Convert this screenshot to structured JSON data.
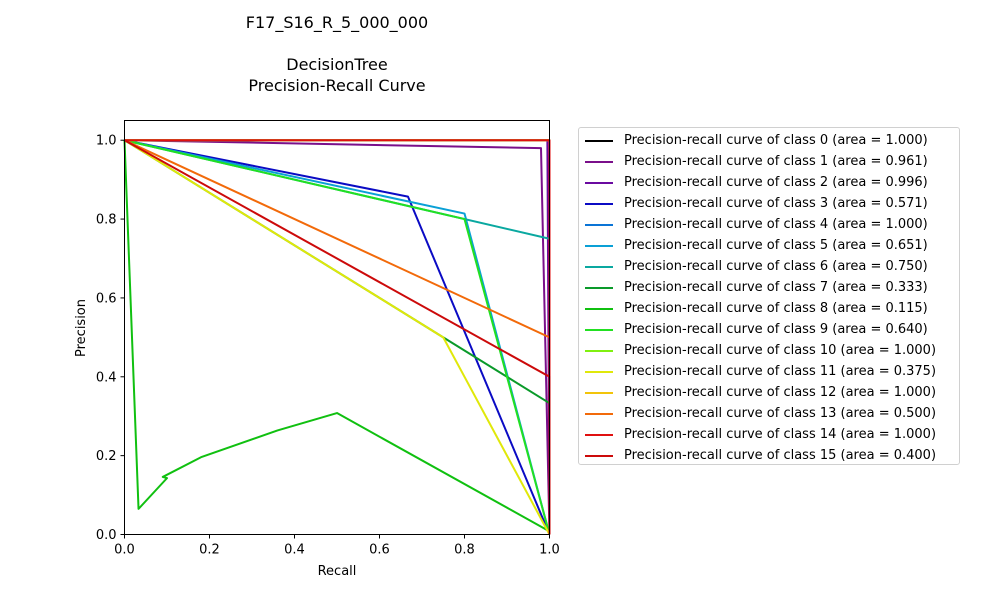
{
  "chart_data": {
    "type": "line",
    "title_lines": [
      "F17_S16_R_5_000_000",
      "",
      "DecisionTree",
      "Precision-Recall Curve"
    ],
    "xlabel": "Recall",
    "ylabel": "Precision",
    "xlim": [
      0.0,
      1.0
    ],
    "ylim": [
      0.0,
      1.05
    ],
    "xticks": [
      "0.0",
      "0.2",
      "0.4",
      "0.6",
      "0.8",
      "1.0"
    ],
    "yticks": [
      "0.0",
      "0.2",
      "0.4",
      "0.6",
      "0.8",
      "1.0"
    ],
    "grid": false,
    "legend_position": "outside-right",
    "series": [
      {
        "name": "Precision-recall curve of class 0 (area = 1.000)",
        "color": "#000000",
        "points": [
          [
            0,
            1
          ],
          [
            1,
            1
          ],
          [
            1,
            0
          ]
        ]
      },
      {
        "name": "Precision-recall curve of class 1 (area = 0.961)",
        "color": "#7a0f8a",
        "points": [
          [
            0,
            1
          ],
          [
            0.98,
            0.98
          ],
          [
            1,
            0
          ]
        ]
      },
      {
        "name": "Precision-recall curve of class 2 (area = 0.996)",
        "color": "#6a0aa0",
        "points": [
          [
            0,
            1
          ],
          [
            0.995,
            1
          ],
          [
            1,
            0
          ]
        ]
      },
      {
        "name": "Precision-recall curve of class 3 (area = 0.571)",
        "color": "#0b0bc4",
        "points": [
          [
            0,
            1
          ],
          [
            0.667,
            0.857
          ],
          [
            1,
            0
          ]
        ]
      },
      {
        "name": "Precision-recall curve of class 4 (area = 1.000)",
        "color": "#0a74d6",
        "points": [
          [
            0,
            1
          ],
          [
            1,
            1
          ],
          [
            1,
            0
          ]
        ]
      },
      {
        "name": "Precision-recall curve of class 5 (area = 0.651)",
        "color": "#0aa0d6",
        "points": [
          [
            0,
            1
          ],
          [
            0.8,
            0.814
          ],
          [
            1,
            0
          ]
        ]
      },
      {
        "name": "Precision-recall curve of class 6 (area = 0.750)",
        "color": "#0aa8a0",
        "points": [
          [
            0,
            1
          ],
          [
            1,
            0.75
          ],
          [
            1,
            0
          ]
        ]
      },
      {
        "name": "Precision-recall curve of class 7 (area = 0.333)",
        "color": "#0a9a2a",
        "points": [
          [
            0,
            1
          ],
          [
            0.75,
            0.5
          ],
          [
            1,
            0.333
          ],
          [
            1,
            0
          ]
        ]
      },
      {
        "name": "Precision-recall curve of class 8 (area = 0.115)",
        "color": "#10c010",
        "points": [
          [
            0,
            1
          ],
          [
            0.033,
            0.065
          ],
          [
            0.1,
            0.143
          ],
          [
            0.09,
            0.146
          ],
          [
            0.18,
            0.196
          ],
          [
            0.36,
            0.264
          ],
          [
            0.5,
            0.308
          ],
          [
            1,
            0.008
          ]
        ]
      },
      {
        "name": "Precision-recall curve of class 9 (area = 0.640)",
        "color": "#22e022",
        "points": [
          [
            0,
            1
          ],
          [
            0.8,
            0.8
          ],
          [
            1,
            0
          ]
        ]
      },
      {
        "name": "Precision-recall curve of class 10 (area = 1.000)",
        "color": "#80f010",
        "points": [
          [
            0,
            1
          ],
          [
            1,
            1
          ],
          [
            1,
            0
          ]
        ]
      },
      {
        "name": "Precision-recall curve of class 11 (area = 0.375)",
        "color": "#e0e80a",
        "points": [
          [
            0,
            1
          ],
          [
            0.75,
            0.5
          ],
          [
            1,
            0
          ]
        ]
      },
      {
        "name": "Precision-recall curve of class 12 (area = 1.000)",
        "color": "#f2c40a",
        "points": [
          [
            0,
            1
          ],
          [
            1,
            1
          ],
          [
            1,
            0
          ]
        ]
      },
      {
        "name": "Precision-recall curve of class 13 (area = 0.500)",
        "color": "#f26a0a",
        "points": [
          [
            0,
            1
          ],
          [
            1,
            0.5
          ],
          [
            1,
            0
          ]
        ]
      },
      {
        "name": "Precision-recall curve of class 14 (area = 1.000)",
        "color": "#e01010",
        "points": [
          [
            0,
            1
          ],
          [
            1,
            1
          ],
          [
            1,
            0.25
          ]
        ]
      },
      {
        "name": "Precision-recall curve of class 15 (area = 0.400)",
        "color": "#cc0a0a",
        "points": [
          [
            0,
            1
          ],
          [
            1,
            0.4
          ],
          [
            1,
            0
          ]
        ]
      }
    ]
  }
}
